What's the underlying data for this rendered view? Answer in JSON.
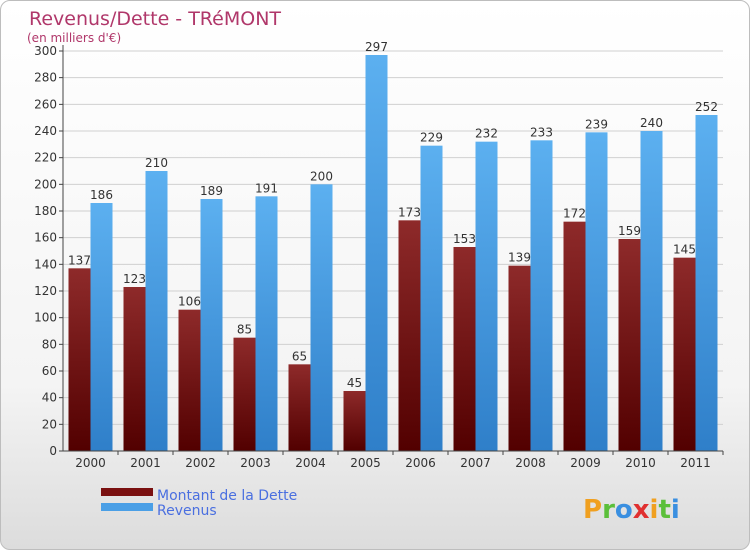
{
  "chart_data": {
    "type": "bar",
    "title": "Revenus/Dette - TRéMONT",
    "subtitle": "(en milliers d'€)",
    "categories": [
      "2000",
      "2001",
      "2002",
      "2003",
      "2004",
      "2005",
      "2006",
      "2007",
      "2008",
      "2009",
      "2010",
      "2011"
    ],
    "series": [
      {
        "name": "Montant de la Dette",
        "color": "#7a1010",
        "values": [
          137,
          123,
          106,
          85,
          65,
          45,
          173,
          153,
          139,
          172,
          159,
          145
        ]
      },
      {
        "name": "Revenus",
        "color": "#4a9fe6",
        "values": [
          186,
          210,
          189,
          191,
          200,
          297,
          229,
          232,
          233,
          239,
          240,
          252
        ]
      }
    ],
    "ylim": [
      0,
      300
    ],
    "yticks": [
      0,
      20,
      40,
      60,
      80,
      100,
      120,
      140,
      160,
      180,
      200,
      220,
      240,
      260,
      280,
      300
    ],
    "grid": true,
    "legend": "bottom-left"
  },
  "logo": {
    "text": "Proxiti"
  }
}
